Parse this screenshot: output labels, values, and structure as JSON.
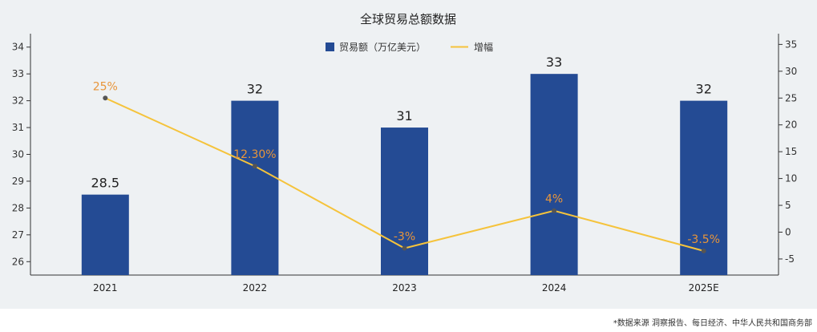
{
  "chart_data": {
    "type": "bar",
    "title": "全球贸易总额数据",
    "categories": [
      "2021",
      "2022",
      "2023",
      "2024",
      "2025E"
    ],
    "series": [
      {
        "name": "贸易额（万亿美元）",
        "type": "bar",
        "axis": "left",
        "values": [
          28.5,
          32,
          31,
          33,
          32
        ],
        "labels": [
          "28.5",
          "32",
          "31",
          "33",
          "32"
        ]
      },
      {
        "name": "增幅",
        "type": "line",
        "axis": "right",
        "values": [
          25,
          12.3,
          -3,
          4,
          -3.5
        ],
        "labels": [
          "25%",
          "12.30%",
          "-3%",
          "4%",
          "-3.5%"
        ]
      }
    ],
    "y_left": {
      "min": 25.5,
      "max": 34.5,
      "ticks": [
        26,
        27,
        28,
        29,
        30,
        31,
        32,
        33,
        34
      ]
    },
    "y_right": {
      "min": -8,
      "max": 37,
      "ticks": [
        -5,
        0,
        5,
        10,
        15,
        20,
        25,
        30,
        35
      ]
    },
    "grid": false,
    "legend_position": "top-center",
    "colors": {
      "bar": "#244b94",
      "line": "#f5c33b",
      "line_label": "#e8953a",
      "background": "#eef1f3"
    }
  },
  "source_note": "*数据来源 洞察报告、每日经济、中华人民共和国商务部"
}
